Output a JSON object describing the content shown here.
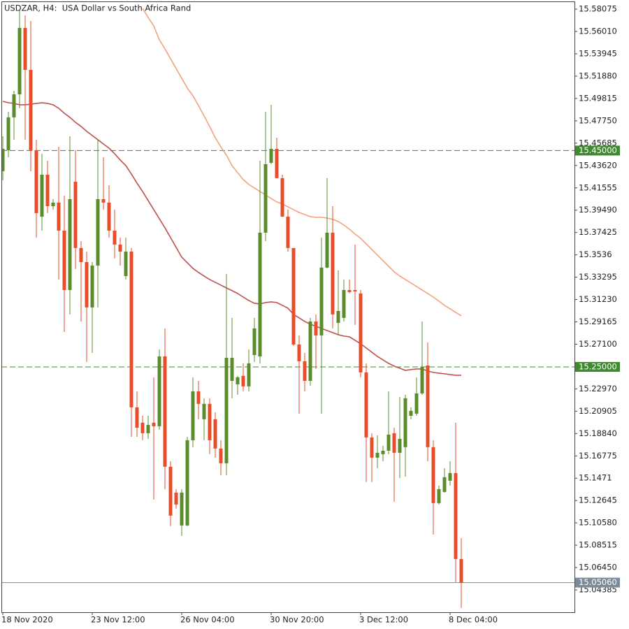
{
  "chart_data": {
    "type": "candlestick",
    "title": "USDZAR, H4:  USA Dollar vs South Africa Rand",
    "categories": [
      "18 Nov 2020",
      null,
      null,
      null,
      null,
      null,
      null,
      null,
      null,
      null,
      null,
      null,
      null,
      null,
      null,
      null,
      "23 Nov 12:00",
      null,
      null,
      null,
      null,
      null,
      null,
      null,
      null,
      null,
      null,
      null,
      null,
      null,
      null,
      null,
      "26 Nov 04:00",
      null,
      null,
      null,
      null,
      null,
      null,
      null,
      null,
      null,
      null,
      null,
      null,
      null,
      null,
      null,
      "30 Nov 20:00",
      null,
      null,
      null,
      null,
      null,
      null,
      null,
      null,
      null,
      null,
      null,
      null,
      null,
      null,
      null,
      "3 Dec 12:00",
      null,
      null,
      null,
      null,
      null,
      null,
      null,
      null,
      null,
      null,
      null,
      null,
      null,
      null,
      null,
      "8 Dec 04:00",
      null,
      null
    ],
    "open": [
      15.4309,
      15.4503,
      15.4807,
      15.502,
      15.5634,
      15.5246,
      15.4503,
      15.3889,
      15.4277,
      15.3986,
      15.4019,
      15.376,
      15.3211,
      15.4212,
      15.3599,
      15.3469,
      15.305,
      15.3437,
      15.4051,
      15.4019,
      15.376,
      15.3631,
      15.334,
      15.3566,
      15.2126,
      15.1984,
      15.1887,
      15.1984,
      15.1951,
      15.2597,
      15.1577,
      15.1338,
      15.1034,
      15.1034,
      15.1822,
      15.2274,
      15.2016,
      15.2158,
      15.2016,
      15.1745,
      15.1609,
      15.2371,
      15.2339,
      15.2417,
      15.232,
      15.261,
      15.2597,
      15.3741,
      15.4387,
      15.4516,
      15.4245,
      15.3889,
      15.3599,
      15.2707,
      15.2552,
      15.2371,
      15.292,
      15.2791,
      15.3418,
      15.3741,
      15.2907,
      15.2953,
      15.3211,
      15.3211,
      15.3179,
      15.2449,
      15.1848,
      15.1661,
      15.1693,
      15.1725,
      15.1887,
      15.1706,
      15.1758,
      15.2048,
      15.2068,
      15.2255,
      15.2513,
      15.1758,
      15.1241,
      15.1344,
      15.1448,
      15.1519,
      15.0724
    ],
    "high": [
      15.4632,
      15.4858,
      15.5052,
      15.5795,
      15.575,
      15.5698,
      15.46,
      15.4471,
      15.4406,
      15.4051,
      15.4535,
      15.4083,
      15.4632,
      15.4503,
      15.3663,
      15.3566,
      15.3469,
      15.46,
      15.4438,
      15.418,
      15.3954,
      15.3696,
      15.3696,
      15.3599,
      15.2274,
      15.2048,
      15.2048,
      15.2404,
      15.2662,
      15.2856,
      15.1628,
      15.137,
      15.137,
      15.1854,
      15.2404,
      15.2371,
      15.221,
      15.221,
      15.2081,
      15.1822,
      15.336,
      15.2953,
      15.2417,
      15.2533,
      15.2662,
      15.2953,
      15.4406,
      15.4858,
      15.4923,
      15.4619,
      15.4277,
      15.3954,
      15.3599,
      15.2791,
      15.263,
      15.2953,
      15.2985,
      15.3696,
      15.4245,
      15.3986,
      15.3392,
      15.3308,
      15.3308,
      15.3631,
      15.3211,
      15.2533,
      15.1887,
      15.1867,
      15.1771,
      15.2274,
      15.1938,
      15.2223,
      15.2242,
      15.2126,
      15.2404,
      15.292,
      15.2727,
      15.1822,
      15.1402,
      15.1564,
      15.1628,
      15.1984,
      15.0918
    ],
    "low": [
      15.4225,
      15.4438,
      15.46,
      15.4891,
      15.46,
      15.4309,
      15.3696,
      15.376,
      15.3922,
      15.3954,
      15.3308,
      15.2823,
      15.2985,
      15.3405,
      15.292,
      15.2546,
      15.263,
      15.305,
      15.3954,
      15.3696,
      15.3502,
      15.3437,
      15.3308,
      15.1854,
      15.1854,
      15.1822,
      15.1835,
      15.1273,
      15.1919,
      15.137,
      15.1028,
      15.1189,
      15.0937,
      15.1028,
      15.1758,
      15.2016,
      15.1822,
      15.1693,
      15.1661,
      15.1499,
      15.1499,
      15.221,
      15.2242,
      15.2274,
      15.2274,
      15.2546,
      15.2533,
      15.3663,
      15.4374,
      15.4245,
      15.3889,
      15.3566,
      15.2694,
      15.2068,
      15.2274,
      15.2326,
      15.2481,
      15.2068,
      15.3411,
      15.2856,
      15.2791,
      15.292,
      15.3179,
      15.2888,
      15.2404,
      15.1435,
      15.1435,
      15.1564,
      15.1628,
      15.1693,
      15.1254,
      15.1473,
      15.1486,
      15.2016,
      15.2048,
      15.2242,
      15.1628,
      15.095,
      15.1228,
      15.1338,
      15.1402,
      15.0511,
      15.0272
    ],
    "close": [
      15.4516,
      15.4807,
      15.502,
      15.5634,
      15.5246,
      15.4503,
      15.3922,
      15.4277,
      15.3986,
      15.4019,
      15.376,
      15.3211,
      15.4051,
      15.3599,
      15.3469,
      15.305,
      15.3437,
      15.4051,
      15.4019,
      15.376,
      15.3631,
      15.3566,
      15.3566,
      15.2126,
      15.1938,
      15.1887,
      15.1964,
      15.1951,
      15.2597,
      15.1577,
      15.1125,
      15.1228,
      15.1338,
      15.1822,
      15.2274,
      15.2158,
      15.2158,
      15.1822,
      15.1745,
      15.1609,
      15.2584,
      15.2584,
      15.2404,
      15.232,
      15.2533,
      15.2856,
      15.3741,
      15.4374,
      15.4516,
      15.4245,
      15.3889,
      15.3599,
      15.2707,
      15.2552,
      15.2371,
      15.292,
      15.2791,
      15.3418,
      15.3741,
      15.2985,
      15.3017,
      15.3211,
      15.3192,
      15.3198,
      15.2449,
      15.1848,
      15.1661,
      15.1706,
      15.1725,
      15.1874,
      15.1706,
      15.1835,
      15.221,
      15.2094,
      15.2255,
      15.25,
      15.1758,
      15.1241,
      15.137,
      15.148,
      15.1519,
      15.0724,
      15.0506
    ],
    "up_color": "#5a8c2e",
    "down_color": "#e94e2b",
    "lines": [
      {
        "color": "#c0504d",
        "values": [
          15.4955,
          15.4942,
          15.4936,
          15.4923,
          15.4923,
          15.4929,
          15.4936,
          15.4942,
          15.4936,
          15.4923,
          15.4891,
          15.4845,
          15.4807,
          15.4761,
          15.4723,
          15.4678,
          15.4639,
          15.46,
          15.4561,
          15.4522,
          15.4471,
          15.4413,
          15.4361,
          15.4283,
          15.4199,
          15.4122,
          15.4038,
          15.3954,
          15.387,
          15.3786,
          15.3696,
          15.3605,
          15.3515,
          15.3463,
          15.3411,
          15.3373,
          15.334,
          15.3308,
          15.3282,
          15.3256,
          15.323,
          15.3205,
          15.3179,
          15.3146,
          15.3114,
          15.3088,
          15.3082,
          15.3095,
          15.3101,
          15.3095,
          15.3069,
          15.3043,
          15.2985,
          15.2953,
          15.292,
          15.2895,
          15.2875,
          15.2856,
          15.2836,
          15.2817,
          15.2798,
          15.2785,
          15.2778,
          15.2746,
          15.2714,
          15.2675,
          15.2636,
          15.2597,
          15.2565,
          15.2533,
          15.2507,
          15.2488,
          15.2468,
          15.2475,
          15.2481,
          15.2481,
          15.2462,
          15.2449,
          15.2442,
          15.2436,
          15.2429,
          15.2423,
          15.2423
        ]
      },
      {
        "color": "#f4a27e",
        "values": [
          null,
          null,
          null,
          null,
          null,
          null,
          null,
          null,
          null,
          null,
          null,
          null,
          null,
          null,
          null,
          null,
          null,
          null,
          null,
          null,
          null,
          null,
          null,
          null,
          null,
          15.5814,
          15.573,
          15.5653,
          15.5524,
          15.544,
          15.5349,
          15.5259,
          15.5168,
          15.5078,
          15.5007,
          15.4917,
          15.482,
          15.4723,
          15.4619,
          15.4535,
          15.4458,
          15.4361,
          15.4296,
          15.4232,
          15.4187,
          15.4154,
          15.4122,
          15.409,
          15.4057,
          15.4025,
          15.4006,
          15.398,
          15.3954,
          15.3928,
          15.3909,
          15.3889,
          15.3883,
          15.3883,
          15.3876,
          15.3864,
          15.3844,
          15.3812,
          15.3773,
          15.3728,
          15.3689,
          15.3637,
          15.3586,
          15.3534,
          15.3482,
          15.3431,
          15.3379,
          15.334,
          15.3308,
          15.3276,
          15.3243,
          15.3211,
          15.3179,
          15.3146,
          15.3108,
          15.3069,
          15.3037,
          15.3004,
          15.2972
        ]
      }
    ],
    "levels": [
      {
        "value": 15.45,
        "label": "15.45000",
        "color": "#3f8a2e"
      },
      {
        "value": 15.25,
        "label": "15.25000",
        "color": "#3f8a2e"
      }
    ],
    "current_price": {
      "value": 15.0506,
      "label": "15.05060",
      "color": "#7c8a99"
    },
    "ylim": [
      15.0232,
      15.5879
    ],
    "yticks": [
      15.58075,
      {
        "value": 15.5601,
        "label": "15.56010"
      },
      15.53945,
      {
        "value": 15.5188,
        "label": "15.51880"
      },
      15.49815,
      {
        "value": 15.4775,
        "label": "15.47750"
      },
      15.45685,
      {
        "value": 15.4362,
        "label": "15.43620"
      },
      15.41555,
      {
        "value": 15.3949,
        "label": "15.39490"
      },
      15.37425,
      15.3536,
      15.33295,
      {
        "value": 15.3123,
        "label": "15.31230"
      },
      15.29165,
      {
        "value": 15.271,
        "label": "15.27100"
      },
      {
        "value": 15.2297,
        "label": "15.22970"
      },
      15.20905,
      {
        "value": 15.1884,
        "label": "15.18840"
      },
      15.16775,
      15.1471,
      15.12645,
      {
        "value": 15.1058,
        "label": "15.10580"
      },
      15.08515,
      {
        "value": 15.0645,
        "label": "15.06450"
      },
      15.04385
    ]
  }
}
